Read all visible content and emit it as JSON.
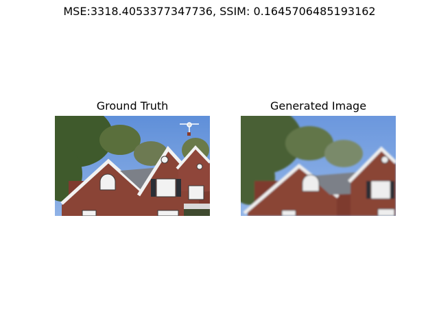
{
  "figure": {
    "title": "MSE:3318.4053377347736, SSIM: 0.1645706485193162"
  },
  "panels": [
    {
      "title": "Ground Truth",
      "image": "house-roof-with-drone-photo"
    },
    {
      "title": "Generated Image",
      "image": "house-roof-photo-blurred"
    }
  ]
}
